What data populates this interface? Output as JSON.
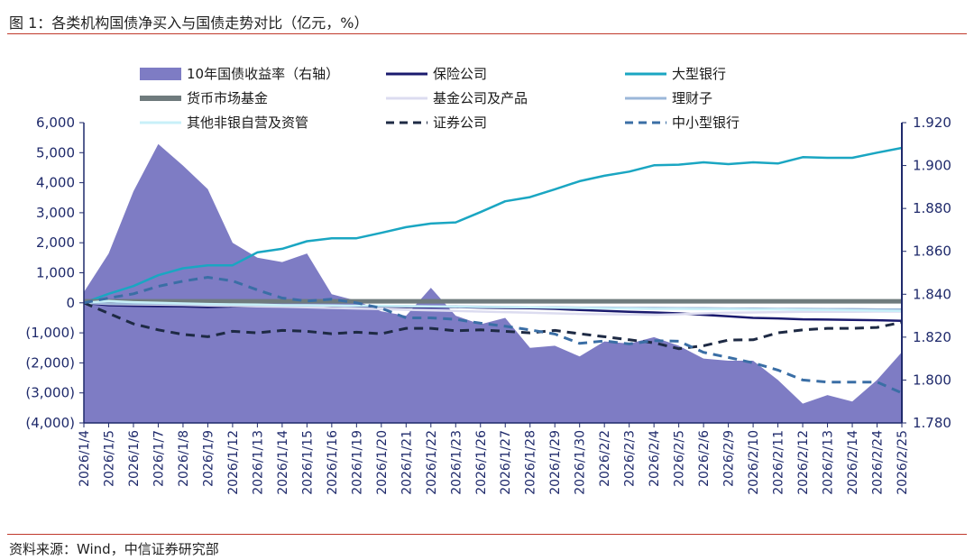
{
  "title": "图 1：各类机构国债净买入与国债走势对比（亿元，%）",
  "source": "资料来源：Wind，中信证券研究部",
  "chart_data": {
    "type": "line",
    "title": "图 1：各类机构国债净买入与国债走势对比（亿元，%）",
    "xlabel": "",
    "ylabel": "亿元",
    "y2label": "%",
    "ylim": [
      -4000,
      6000
    ],
    "y2lim": [
      1.78,
      1.92
    ],
    "yticks": [
      6000,
      5000,
      4000,
      3000,
      2000,
      1000,
      0,
      -1000,
      -2000,
      -3000,
      -4000
    ],
    "ytick_labels": [
      "6,000",
      "5,000",
      "4,000",
      "3,000",
      "2,000",
      "1,000",
      "0",
      "(1,000)",
      "(2,000)",
      "(3,000)",
      "(4,000)"
    ],
    "y2ticks": [
      1.92,
      1.9,
      1.88,
      1.86,
      1.84,
      1.82,
      1.8,
      1.78
    ],
    "y2tick_labels": [
      "1.920",
      "1.900",
      "1.880",
      "1.860",
      "1.840",
      "1.820",
      "1.800",
      "1.780"
    ],
    "categories": [
      "2026/1/4",
      "2026/1/5",
      "2026/1/6",
      "2026/1/7",
      "2026/1/8",
      "2026/1/9",
      "2026/1/12",
      "2026/1/13",
      "2026/1/14",
      "2026/1/15",
      "2026/1/16",
      "2026/1/19",
      "2026/1/20",
      "2026/1/21",
      "2026/1/22",
      "2026/1/23",
      "2026/1/26",
      "2026/1/27",
      "2026/1/28",
      "2026/1/29",
      "2026/1/30",
      "2026/2/2",
      "2026/2/3",
      "2026/2/4",
      "2026/2/5",
      "2026/2/6",
      "2026/2/9",
      "2026/2/10",
      "2026/2/11",
      "2026/2/12",
      "2026/2/13",
      "2026/2/14",
      "2026/2/24",
      "2026/2/25"
    ],
    "legend": [
      {
        "name": "10年国债收益率（右轴）",
        "color": "#7e7cc4",
        "style": "area"
      },
      {
        "name": "保险公司",
        "color": "#1a1a6e",
        "style": "solid"
      },
      {
        "name": "大型银行",
        "color": "#1aa6c2",
        "style": "solid"
      },
      {
        "name": "货币市场基金",
        "color": "#6f7b7d",
        "style": "thick"
      },
      {
        "name": "基金公司及产品",
        "color": "#dcdcf0",
        "style": "solid"
      },
      {
        "name": "理财子",
        "color": "#9bb7d9",
        "style": "solid"
      },
      {
        "name": "其他非银自营及资管",
        "color": "#c8f0f8",
        "style": "solid"
      },
      {
        "name": "证券公司",
        "color": "#1e2a44",
        "style": "dashed"
      },
      {
        "name": "中小型银行",
        "color": "#3a6ea5",
        "style": "dashed"
      }
    ],
    "series": [
      {
        "name": "10年国债收益率（右轴）",
        "axis": "right",
        "type": "area",
        "color": "#7e7cc4",
        "values": [
          1.841,
          1.859,
          1.888,
          1.91,
          1.9,
          1.889,
          1.864,
          1.857,
          1.855,
          1.859,
          1.84,
          1.837,
          1.832,
          1.83,
          1.843,
          1.83,
          1.826,
          1.829,
          1.815,
          1.816,
          1.811,
          1.818,
          1.817,
          1.82,
          1.816,
          1.81,
          1.809,
          1.809,
          1.8,
          1.789,
          1.793,
          1.79,
          1.8,
          1.813
        ]
      },
      {
        "name": "保险公司",
        "axis": "left",
        "type": "line",
        "color": "#1a1a6e",
        "values": [
          0,
          -80,
          -100,
          -110,
          -120,
          -140,
          -120,
          -110,
          -110,
          -110,
          -100,
          -110,
          -120,
          -140,
          -140,
          -140,
          -160,
          -170,
          -180,
          -200,
          -240,
          -270,
          -300,
          -320,
          -350,
          -400,
          -450,
          -500,
          -520,
          -550,
          -560,
          -570,
          -580,
          -600
        ]
      },
      {
        "name": "大型银行",
        "axis": "left",
        "type": "line",
        "color": "#1aa6c2",
        "values": [
          0,
          300,
          560,
          920,
          1150,
          1250,
          1250,
          1680,
          1800,
          2050,
          2150,
          2150,
          2330,
          2520,
          2640,
          2680,
          3020,
          3380,
          3520,
          3780,
          4050,
          4230,
          4370,
          4580,
          4600,
          4680,
          4620,
          4680,
          4640,
          4850,
          4830,
          4830,
          5000,
          5160
        ]
      },
      {
        "name": "货币市场基金",
        "axis": "left",
        "type": "line",
        "color": "#6f7b7d",
        "values": [
          50,
          50,
          50,
          50,
          50,
          50,
          50,
          50,
          50,
          50,
          50,
          50,
          50,
          50,
          50,
          50,
          50,
          50,
          50,
          50,
          50,
          50,
          50,
          50,
          50,
          50,
          50,
          50,
          50,
          50,
          50,
          50,
          50,
          50
        ]
      },
      {
        "name": "基金公司及产品",
        "axis": "left",
        "type": "line",
        "color": "#dcdcf0",
        "values": [
          0,
          -40,
          -50,
          -60,
          -70,
          -90,
          -100,
          -120,
          -130,
          -150,
          -170,
          -190,
          -210,
          -230,
          -250,
          -270,
          -290,
          -310,
          -330,
          -350,
          -370,
          -380,
          -390,
          -400,
          -380,
          -350,
          -330,
          -320,
          -310,
          -300,
          -300,
          -300,
          -290,
          -290
        ]
      },
      {
        "name": "理财子",
        "axis": "left",
        "type": "line",
        "color": "#9bb7d9",
        "values": [
          0,
          -20,
          -30,
          -30,
          -40,
          -50,
          -60,
          -70,
          -80,
          -90,
          -90,
          -100,
          -110,
          -110,
          -120,
          -120,
          -130,
          -140,
          -150,
          -150,
          -160,
          -160,
          -170,
          -170,
          -180,
          -180,
          -190,
          -190,
          -200,
          -200,
          -210,
          -210,
          -220,
          -220
        ]
      },
      {
        "name": "其他非银自营及资管",
        "axis": "left",
        "type": "line",
        "color": "#c8f0f8",
        "values": [
          0,
          60,
          20,
          0,
          -20,
          -40,
          -50,
          -60,
          -80,
          -80,
          -90,
          -100,
          -100,
          -110,
          -120,
          -130,
          -140,
          -140,
          -150,
          -160,
          -170,
          -180,
          -190,
          -200,
          -200,
          -210,
          -210,
          -220,
          -220,
          -230,
          -240,
          -250,
          -260,
          -270
        ]
      },
      {
        "name": "证券公司",
        "axis": "left",
        "type": "line",
        "color": "#1e2a44",
        "dashed": true,
        "values": [
          0,
          -350,
          -700,
          -900,
          -1050,
          -1130,
          -950,
          -1000,
          -920,
          -950,
          -1030,
          -980,
          -1030,
          -850,
          -850,
          -930,
          -900,
          -950,
          -1000,
          -920,
          -1030,
          -1130,
          -1230,
          -1330,
          -1530,
          -1430,
          -1240,
          -1230,
          -1000,
          -900,
          -850,
          -850,
          -820,
          -650
        ]
      },
      {
        "name": "中小型银行",
        "axis": "left",
        "type": "line",
        "color": "#3a6ea5",
        "dashed": true,
        "values": [
          0,
          160,
          300,
          550,
          720,
          850,
          730,
          430,
          160,
          60,
          120,
          0,
          -180,
          -500,
          -500,
          -550,
          -680,
          -780,
          -900,
          -1040,
          -1350,
          -1270,
          -1370,
          -1260,
          -1280,
          -1650,
          -1820,
          -2000,
          -2240,
          -2570,
          -2640,
          -2640,
          -2640,
          -3000
        ]
      }
    ]
  }
}
